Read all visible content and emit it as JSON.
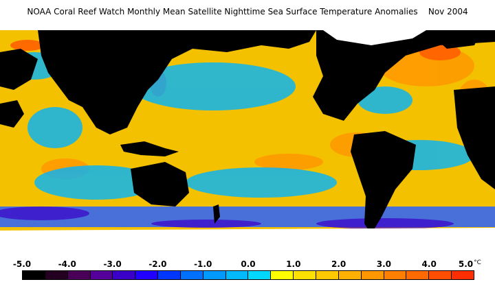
{
  "title": "NOAA Coral Reef Watch Monthly Mean Satellite Nighttime Sea Surface Temperature Anomalies    Nov 2004",
  "colorbar": {
    "unit": "°C",
    "ticks": [
      "-5.0",
      "-4.0",
      "-3.0",
      "-2.0",
      "-1.0",
      "0.0",
      "1.0",
      "2.0",
      "3.0",
      "4.0",
      "5.0"
    ],
    "colors": [
      "#000000",
      "#23001f",
      "#4a0058",
      "#55009a",
      "#3a00c8",
      "#2200ff",
      "#0037ff",
      "#0070ff",
      "#0099ff",
      "#00b9ff",
      "#00d8ff",
      "#ffff00",
      "#ffe000",
      "#ffc800",
      "#ffb000",
      "#ff9800",
      "#ff8000",
      "#ff6a00",
      "#ff4e00",
      "#ff2e00"
    ]
  },
  "map": {
    "land_color": "#000000",
    "ice_color": "#ffffff",
    "ocean_color": "#f4c400"
  }
}
